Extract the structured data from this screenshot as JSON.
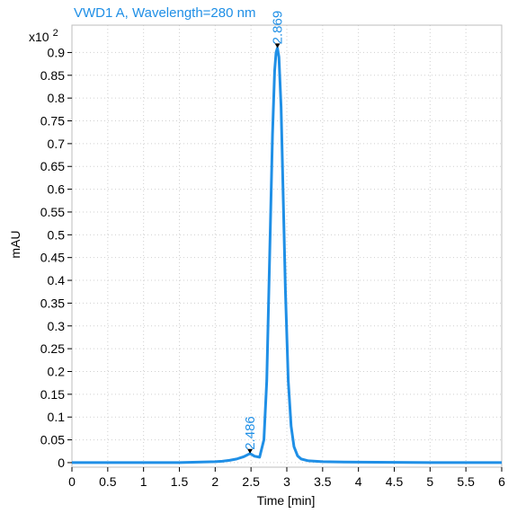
{
  "chart_data": {
    "type": "line",
    "title": "VWD1 A, Wavelength=280 nm",
    "xlabel": "Time [min]",
    "ylabel": "mAU",
    "y_multiplier": "x10",
    "y_multiplier_exp": "2",
    "xlim": [
      0,
      6
    ],
    "ylim": [
      -0.01,
      0.96
    ],
    "x_ticks": [
      "0",
      "0.5",
      "1",
      "1.5",
      "2",
      "2.5",
      "3",
      "3.5",
      "4",
      "4.5",
      "5",
      "5.5",
      "6"
    ],
    "y_ticks": [
      "0",
      "0.05",
      "0.1",
      "0.15",
      "0.2",
      "0.25",
      "0.3",
      "0.35",
      "0.4",
      "0.45",
      "0.5",
      "0.55",
      "0.6",
      "0.65",
      "0.7",
      "0.75",
      "0.8",
      "0.85",
      "0.9"
    ],
    "grid": true,
    "line_color": "#1f8fe6",
    "series": [
      {
        "x": [
          0,
          0.5,
          1.0,
          1.5,
          2.0,
          2.1,
          2.2,
          2.3,
          2.4,
          2.486,
          2.55,
          2.62,
          2.68,
          2.72,
          2.76,
          2.8,
          2.83,
          2.85,
          2.869,
          2.89,
          2.92,
          2.95,
          2.98,
          3.02,
          3.06,
          3.1,
          3.15,
          3.2,
          3.3,
          3.5,
          4.0,
          5.0,
          6.0
        ],
        "y": [
          0.0,
          0.0,
          0.0,
          0.0,
          0.002,
          0.003,
          0.005,
          0.008,
          0.013,
          0.02,
          0.014,
          0.012,
          0.05,
          0.18,
          0.45,
          0.72,
          0.86,
          0.9,
          0.91,
          0.89,
          0.78,
          0.58,
          0.38,
          0.18,
          0.08,
          0.035,
          0.015,
          0.008,
          0.004,
          0.002,
          0.001,
          0.0,
          0.0
        ]
      }
    ],
    "peaks": [
      {
        "x": 2.486,
        "y": 0.02,
        "label": "2.486"
      },
      {
        "x": 2.869,
        "y": 0.91,
        "label": "2.869"
      }
    ]
  }
}
